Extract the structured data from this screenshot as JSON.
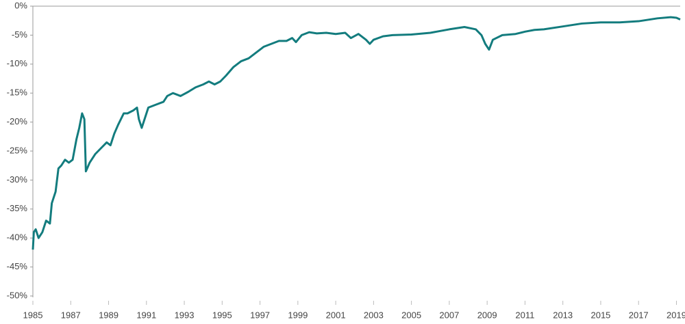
{
  "chart_data": {
    "type": "line",
    "color": "#137c7e",
    "x": [
      1985.0,
      1985.05,
      1985.15,
      1985.3,
      1985.5,
      1985.7,
      1985.9,
      1986.0,
      1986.2,
      1986.35,
      1986.5,
      1986.7,
      1986.9,
      1987.1,
      1987.3,
      1987.45,
      1987.6,
      1987.72,
      1987.8,
      1988.0,
      1988.3,
      1988.6,
      1988.9,
      1989.1,
      1989.3,
      1989.5,
      1989.8,
      1990.0,
      1990.3,
      1990.5,
      1990.6,
      1990.75,
      1990.9,
      1991.1,
      1991.5,
      1991.9,
      1992.1,
      1992.4,
      1992.8,
      1993.2,
      1993.6,
      1994.0,
      1994.3,
      1994.6,
      1994.9,
      1995.2,
      1995.6,
      1996.0,
      1996.4,
      1996.8,
      1997.2,
      1997.6,
      1998.0,
      1998.4,
      1998.7,
      1998.9,
      1999.2,
      1999.6,
      2000.0,
      2000.5,
      2001.0,
      2001.5,
      2001.8,
      2002.2,
      2002.6,
      2002.8,
      2003.0,
      2003.5,
      2004.0,
      2005.0,
      2006.0,
      2007.0,
      2007.8,
      2008.4,
      2008.7,
      2008.9,
      2009.1,
      2009.3,
      2009.8,
      2010.5,
      2011.0,
      2011.5,
      2012.0,
      2013.0,
      2014.0,
      2015.0,
      2016.0,
      2017.0,
      2018.0,
      2018.7,
      2019.0,
      2019.2
    ],
    "values": [
      -42,
      -39,
      -38.5,
      -40,
      -39,
      -37,
      -37.5,
      -34,
      -32,
      -28,
      -27.5,
      -26.5,
      -27,
      -26.5,
      -23,
      -21,
      -18.5,
      -19.5,
      -28.5,
      -27,
      -25.5,
      -24.5,
      -23.5,
      -24,
      -22,
      -20.5,
      -18.5,
      -18.5,
      -18,
      -17.5,
      -19.5,
      -21,
      -19.5,
      -17.5,
      -17,
      -16.5,
      -15.5,
      -15,
      -15.5,
      -14.8,
      -14,
      -13.5,
      -13,
      -13.5,
      -13,
      -12,
      -10.5,
      -9.5,
      -9,
      -8,
      -7,
      -6.5,
      -6,
      -6,
      -5.5,
      -6.2,
      -5,
      -4.5,
      -4.7,
      -4.6,
      -4.8,
      -4.6,
      -5.5,
      -4.8,
      -5.8,
      -6.5,
      -5.8,
      -5.2,
      -5,
      -4.9,
      -4.6,
      -4,
      -3.6,
      -4,
      -5,
      -6.5,
      -7.5,
      -5.8,
      -5,
      -4.8,
      -4.4,
      -4.1,
      -4,
      -3.5,
      -3,
      -2.8,
      -2.8,
      -2.6,
      -2.1,
      -1.9,
      -2.0,
      -2.3
    ],
    "xlim": [
      1985,
      2019.2
    ],
    "xticks": [
      1985,
      1987,
      1989,
      1991,
      1993,
      1995,
      1997,
      1999,
      2001,
      2003,
      2005,
      2007,
      2009,
      2011,
      2013,
      2015,
      2017,
      2019
    ],
    "ylim": [
      -50,
      0
    ],
    "yticks": [
      {
        "value": 0,
        "label": "0%"
      },
      {
        "value": -5,
        "label": "-5%"
      },
      {
        "value": -10,
        "label": "-10%"
      },
      {
        "value": -15,
        "label": "-15%"
      },
      {
        "value": -20,
        "label": "-20%"
      },
      {
        "value": -25,
        "label": "-25%"
      },
      {
        "value": -30,
        "label": "-30%"
      },
      {
        "value": -35,
        "label": "-35%"
      },
      {
        "value": -40,
        "label": "-40%"
      },
      {
        "value": -45,
        "label": "-45%"
      },
      {
        "value": -50,
        "label": "-50%"
      }
    ]
  }
}
